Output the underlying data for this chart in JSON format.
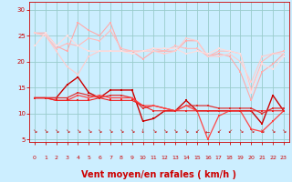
{
  "bg_color": "#cceeff",
  "grid_color": "#99cccc",
  "xlabel": "Vent moyen/en rafales ( km/h )",
  "xlabel_color": "#cc0000",
  "xlabel_fontsize": 7,
  "tick_color": "#cc0000",
  "yticks": [
    5,
    10,
    15,
    20,
    25,
    30
  ],
  "xticks": [
    0,
    1,
    2,
    3,
    4,
    5,
    6,
    7,
    8,
    9,
    10,
    11,
    12,
    13,
    14,
    15,
    16,
    17,
    18,
    19,
    20,
    21,
    22,
    23
  ],
  "xlim": [
    -0.5,
    23.5
  ],
  "ylim": [
    4.5,
    31.5
  ],
  "series": [
    {
      "y": [
        25.5,
        25.5,
        23.0,
        22.0,
        27.5,
        26.0,
        25.0,
        27.5,
        22.0,
        22.0,
        20.5,
        22.0,
        22.0,
        22.0,
        24.0,
        24.0,
        21.0,
        21.5,
        21.0,
        18.0,
        12.5,
        18.0,
        19.5,
        21.5
      ],
      "color": "#ffaaaa",
      "lw": 0.8,
      "marker": "s",
      "ms": 1.8
    },
    {
      "y": [
        25.5,
        25.0,
        22.5,
        23.5,
        23.0,
        24.5,
        24.0,
        26.0,
        22.5,
        22.0,
        22.0,
        22.5,
        22.0,
        23.0,
        22.5,
        22.5,
        21.0,
        22.0,
        22.0,
        21.5,
        14.5,
        20.0,
        21.5,
        22.0
      ],
      "color": "#ffbbbb",
      "lw": 0.8,
      "marker": "s",
      "ms": 1.8
    },
    {
      "y": [
        25.5,
        25.0,
        22.0,
        19.0,
        17.5,
        21.0,
        22.0,
        22.0,
        22.0,
        22.0,
        22.0,
        22.0,
        21.5,
        22.0,
        24.5,
        24.0,
        21.0,
        21.0,
        21.5,
        20.0,
        16.0,
        21.0,
        21.5,
        21.5
      ],
      "color": "#ffcccc",
      "lw": 0.8,
      "marker": "s",
      "ms": 1.8
    },
    {
      "y": [
        23.0,
        25.5,
        23.0,
        25.0,
        23.0,
        22.0,
        22.0,
        22.0,
        22.0,
        21.5,
        22.0,
        22.5,
        22.5,
        22.5,
        21.5,
        22.0,
        21.5,
        22.5,
        22.0,
        21.5,
        14.0,
        19.5,
        18.5,
        21.0
      ],
      "color": "#ffdddd",
      "lw": 0.8,
      "marker": "s",
      "ms": 1.8
    },
    {
      "y": [
        13.0,
        13.0,
        13.0,
        15.5,
        17.0,
        14.0,
        13.0,
        14.5,
        14.5,
        14.5,
        8.5,
        9.0,
        10.5,
        10.5,
        12.5,
        10.5,
        10.5,
        10.5,
        10.5,
        10.5,
        10.5,
        8.0,
        13.5,
        10.5
      ],
      "color": "#cc0000",
      "lw": 1.0,
      "marker": "s",
      "ms": 2.0
    },
    {
      "y": [
        13.0,
        13.0,
        13.0,
        13.0,
        14.0,
        13.5,
        13.0,
        13.5,
        13.5,
        13.0,
        11.0,
        11.5,
        11.0,
        10.5,
        11.5,
        11.5,
        11.5,
        11.0,
        11.0,
        11.0,
        11.0,
        10.0,
        11.0,
        11.0
      ],
      "color": "#dd3333",
      "lw": 0.9,
      "marker": "s",
      "ms": 1.8
    },
    {
      "y": [
        13.0,
        13.0,
        12.5,
        12.5,
        13.5,
        13.0,
        13.5,
        13.0,
        13.0,
        13.0,
        11.5,
        11.5,
        11.0,
        10.5,
        11.5,
        10.5,
        5.0,
        9.5,
        10.5,
        10.5,
        7.0,
        6.5,
        8.5,
        10.5
      ],
      "color": "#ff4444",
      "lw": 0.9,
      "marker": "s",
      "ms": 1.8
    },
    {
      "y": [
        13.0,
        13.0,
        12.5,
        12.5,
        12.5,
        12.5,
        13.0,
        12.5,
        12.5,
        12.5,
        11.5,
        10.5,
        10.5,
        10.5,
        10.5,
        10.5,
        10.5,
        10.5,
        10.5,
        10.5,
        10.5,
        10.5,
        10.5,
        10.5
      ],
      "color": "#ee2222",
      "lw": 0.8,
      "marker": "s",
      "ms": 1.8
    }
  ]
}
